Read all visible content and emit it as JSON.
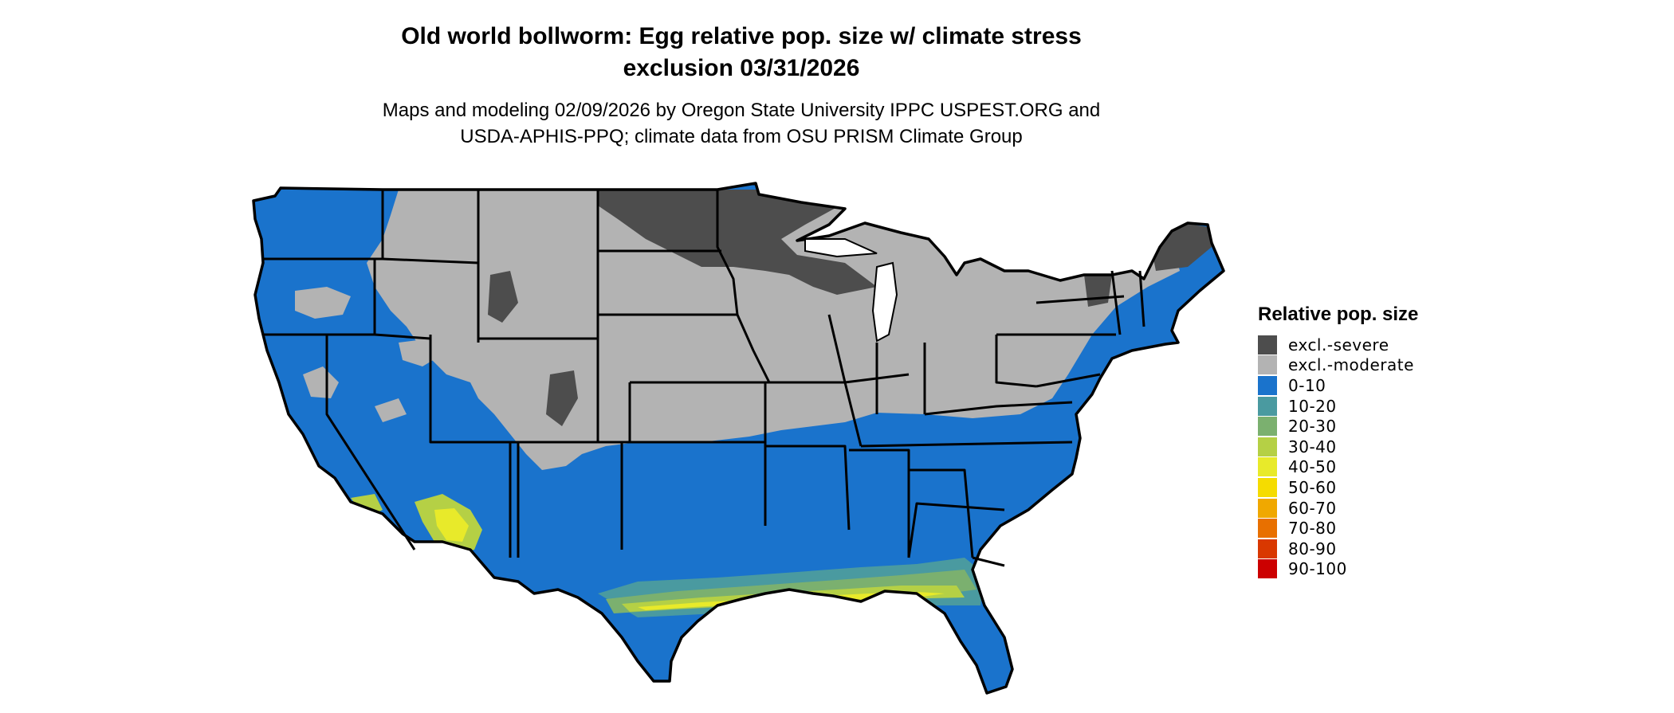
{
  "title": {
    "line1": "Old world bollworm: Egg relative pop. size w/ climate stress",
    "line2": "exclusion 03/31/2026"
  },
  "subtitle": {
    "line1": "Maps and modeling 02/09/2026 by Oregon State University IPPC USPEST.ORG and",
    "line2": "USDA-APHIS-PPQ; climate data from OSU PRISM Climate Group"
  },
  "map": {
    "region": "contiguous-united-states",
    "colors": {
      "excl_severe": "#4d4d4d",
      "excl_moderate": "#b3b3b3",
      "v0_10": "#1a73cc",
      "v10_20": "#4a9aa0",
      "v20_30": "#7bb06f",
      "v30_40": "#b5d045",
      "v40_50": "#e8ea2a",
      "border": "#000000"
    }
  },
  "legend": {
    "title": "Relative pop. size",
    "items": [
      {
        "label": "excl.-severe",
        "color": "#4d4d4d"
      },
      {
        "label": "excl.-moderate",
        "color": "#b3b3b3"
      },
      {
        "label": "0-10",
        "color": "#1a73cc"
      },
      {
        "label": "10-20",
        "color": "#4a9aa0"
      },
      {
        "label": "20-30",
        "color": "#7bb06f"
      },
      {
        "label": "30-40",
        "color": "#b5d045"
      },
      {
        "label": "40-50",
        "color": "#e8ea2a"
      },
      {
        "label": "50-60",
        "color": "#f5dc00"
      },
      {
        "label": "60-70",
        "color": "#f0a800"
      },
      {
        "label": "70-80",
        "color": "#e87000"
      },
      {
        "label": "80-90",
        "color": "#d93800"
      },
      {
        "label": "90-100",
        "color": "#cc0000"
      }
    ]
  }
}
